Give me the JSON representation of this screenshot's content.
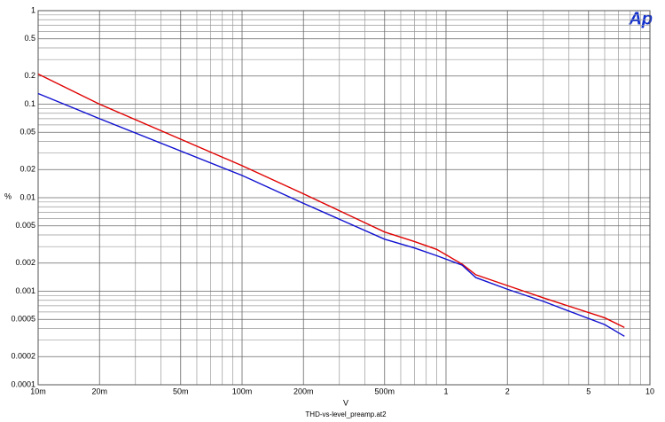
{
  "chart_data": {
    "type": "line",
    "xlabel": "V",
    "ylabel": "%",
    "footer": "THD-vs-level_preamp.at2",
    "logo": "Ap",
    "xlog": true,
    "ylog": true,
    "grid": true,
    "x": [
      0.01,
      0.02,
      0.1,
      0.2,
      0.5,
      0.7,
      0.9,
      1.2,
      1.4,
      2,
      3,
      6,
      7.5
    ],
    "series": [
      {
        "color": "#e00000",
        "values": [
          0.21,
          0.1,
          0.022,
          0.011,
          0.0043,
          0.0034,
          0.0028,
          0.00195,
          0.0015,
          0.00115,
          0.00085,
          0.00052,
          0.00041
        ]
      },
      {
        "color": "#1010d0",
        "values": [
          0.13,
          0.07,
          0.0173,
          0.0087,
          0.0036,
          0.0029,
          0.0024,
          0.0019,
          0.0014,
          0.00105,
          0.00078,
          0.00044,
          0.00033
        ]
      }
    ],
    "xlim": [
      0.01,
      10
    ],
    "ylim": [
      0.0001,
      1
    ],
    "xticks": [
      {
        "value": 0.01,
        "label": "10m"
      },
      {
        "value": 0.02,
        "label": "20m"
      },
      {
        "value": 0.05,
        "label": "50m"
      },
      {
        "value": 0.1,
        "label": "100m"
      },
      {
        "value": 0.2,
        "label": "200m"
      },
      {
        "value": 0.5,
        "label": "500m"
      },
      1,
      2,
      5,
      10
    ],
    "yticks": [
      1,
      0.5,
      0.2,
      0.1,
      0.05,
      0.02,
      0.01,
      0.005,
      0.002,
      0.001,
      0.0005,
      0.0002,
      0.0001
    ],
    "xgrid": [
      0.03,
      0.04,
      0.06,
      0.07,
      0.08,
      0.09,
      0.3,
      0.4,
      0.6,
      0.7,
      0.8,
      0.9,
      3,
      4,
      6,
      7,
      8,
      9
    ],
    "ygrid": [
      0.9,
      0.8,
      0.7,
      0.6,
      0.4,
      0.3,
      0.09,
      0.08,
      0.07,
      0.06,
      0.04,
      0.03,
      0.009,
      0.008,
      0.007,
      0.006,
      0.004,
      0.003,
      0.0009,
      0.0008,
      0.0007,
      0.0006,
      0.0004,
      0.0003
    ]
  }
}
